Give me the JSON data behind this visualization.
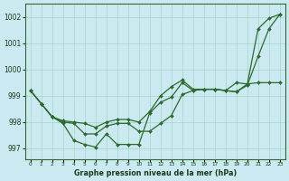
{
  "bg_color": "#cbe9f0",
  "grid_color": "#a8d4c8",
  "line_color": "#2d6a2d",
  "marker_color": "#2d6a2d",
  "title": "Graphe pression niveau de la mer (hPa)",
  "xlabel_ticks": [
    "0",
    "1",
    "2",
    "3",
    "4",
    "5",
    "6",
    "7",
    "8",
    "9",
    "10",
    "11",
    "12",
    "13",
    "14",
    "15",
    "16",
    "17",
    "18",
    "19",
    "20",
    "21",
    "22",
    "23"
  ],
  "ylim": [
    996.6,
    1002.5
  ],
  "yticks": [
    997,
    998,
    999,
    1000,
    1001,
    1002
  ],
  "series1": [
    999.2,
    998.7,
    998.2,
    997.95,
    997.3,
    997.15,
    997.05,
    997.55,
    997.15,
    997.15,
    997.15,
    998.35,
    998.75,
    998.95,
    999.5,
    999.2,
    999.25,
    999.25,
    999.2,
    999.15,
    999.45,
    1001.55,
    1001.95,
    1002.1
  ],
  "series2": [
    999.2,
    998.7,
    998.2,
    998.0,
    997.95,
    997.55,
    997.55,
    997.85,
    997.95,
    997.95,
    997.65,
    997.65,
    997.95,
    998.25,
    999.05,
    999.2,
    999.25,
    999.25,
    999.2,
    999.15,
    999.4,
    1000.5,
    1001.55,
    1002.1
  ],
  "series3": [
    999.2,
    998.7,
    998.2,
    998.05,
    998.0,
    997.95,
    997.8,
    998.0,
    998.1,
    998.1,
    998.0,
    998.4,
    999.0,
    999.35,
    999.6,
    999.25,
    999.25,
    999.25,
    999.2,
    999.5,
    999.45,
    999.5,
    999.5,
    999.5
  ]
}
